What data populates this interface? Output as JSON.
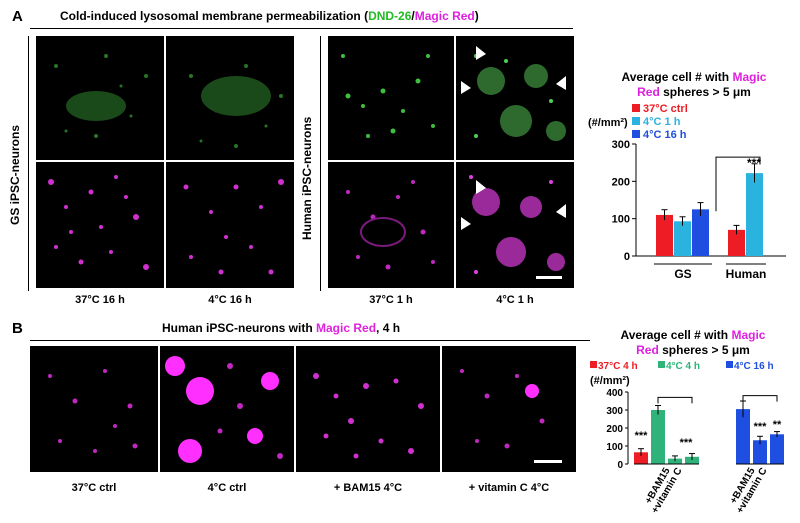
{
  "colors": {
    "magenta": "#e020e0",
    "green": "#22bb22",
    "red": "#ee1c24",
    "cyan": "#2bb3e0",
    "blue": "#1f4fe0",
    "teal_green": "#2fb37a"
  },
  "panel_a": {
    "letter": "A",
    "title_prefix": "Cold-induced lysosomal membrane permeabilization (",
    "title_green": "DND-26",
    "title_sep": "/",
    "title_magenta": "Magic Red",
    "title_suffix": ")",
    "row_label_gs": "GS iPSC-neurons",
    "row_label_human": "Human iPSC-neurons",
    "captions": [
      "37°C 16 h",
      "4°C 16 h",
      "37°C 1 h",
      "4°C 1 h"
    ]
  },
  "panel_b": {
    "letter": "B",
    "title_prefix": "Human iPSC-neurons with ",
    "title_magenta": "Magic Red",
    "title_suffix": ", 4 h",
    "captions": [
      "37°C ctrl",
      "4°C ctrl",
      "+ BAM15 4°C",
      "+ vitamin C 4°C"
    ]
  },
  "chart_a_title": {
    "line1_prefix": "Average cell # with ",
    "line1_magenta": "Magic",
    "line2_magenta": "Red",
    "line2_suffix": " spheres > 5 μm"
  },
  "chart_b_title": {
    "line1_prefix": "Average cell # with ",
    "line1_magenta": "Magic",
    "line2_magenta": "Red",
    "line2_suffix": " spheres > 5 μm"
  },
  "chart_data": [
    {
      "type": "bar",
      "ylabel": "(#/mm²)",
      "ylim": [
        0,
        300
      ],
      "yticks": [
        0,
        100,
        200,
        300
      ],
      "groups": [
        "GS",
        "Human"
      ],
      "series": [
        {
          "name": "37°C ctrl",
          "color": "#ee1c24",
          "values": [
            110,
            70
          ],
          "errors": [
            14,
            12
          ]
        },
        {
          "name": "4°C 1 h",
          "color": "#2bb3e0",
          "values": [
            93,
            222
          ],
          "errors": [
            12,
            25
          ]
        },
        {
          "name": "4°C 16 h",
          "color": "#1f4fe0",
          "values": [
            125,
            null
          ],
          "errors": [
            18,
            null
          ]
        }
      ],
      "significance": [
        "***"
      ],
      "legend_position": "top-left"
    },
    {
      "type": "bar",
      "ylabel": "(#/mm²)",
      "ylim": [
        0,
        400
      ],
      "yticks": [
        0,
        100,
        200,
        300,
        400
      ],
      "legend": [
        {
          "name": "37°C 4 h",
          "color": "#ee1c24"
        },
        {
          "name": "4°C 4 h",
          "color": "#2fb37a"
        },
        {
          "name": "4°C 16 h",
          "color": "#1f4fe0"
        }
      ],
      "groups": [
        {
          "bars": [
            {
              "color": "#ee1c24",
              "value": 65,
              "error": 20
            },
            {
              "color": "#2fb37a",
              "value": 300,
              "error": 25
            },
            {
              "color": "#2fb37a",
              "value": 30,
              "error": 15
            },
            {
              "color": "#2fb37a",
              "value": 40,
              "error": 18
            }
          ],
          "significance": [
            "***",
            "***"
          ],
          "xlabels": [
            "+BAM15",
            "+vitamin C"
          ]
        },
        {
          "bars": [
            {
              "color": "#1f4fe0",
              "value": 305,
              "error": 45
            },
            {
              "color": "#1f4fe0",
              "value": 132,
              "error": 22
            },
            {
              "color": "#1f4fe0",
              "value": 165,
              "error": 15
            }
          ],
          "significance": [
            "***",
            "**"
          ],
          "xlabels": [
            "+BAM15",
            "+vitamin C"
          ]
        }
      ]
    }
  ]
}
